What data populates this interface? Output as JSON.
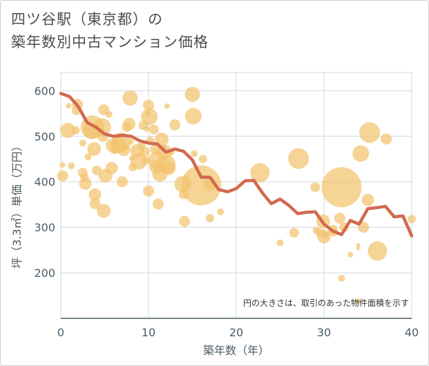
{
  "chart_data": {
    "type": "scatter",
    "title": [
      "四ツ谷駅（東京都）の",
      "築年数別中古マンション価格"
    ],
    "xlabel": "築年数（年）",
    "ylabel": "坪（3.3㎡）単価（万円）",
    "xlim": [
      0,
      40
    ],
    "ylim": [
      100,
      640
    ],
    "xticks": [
      0,
      10,
      20,
      30,
      40
    ],
    "yticks": [
      200,
      300,
      400,
      500,
      600
    ],
    "grid": true,
    "note": "円の大きさは、取引のあった物件面積を示す",
    "colors": {
      "bubble": "#f2c46e",
      "line": "#d2694f",
      "grid": "#cfd8df",
      "axis": "#4a5b66"
    },
    "trend_line": {
      "x": [
        0,
        1,
        2,
        3,
        4,
        5,
        6,
        7,
        8,
        9,
        10,
        11,
        12,
        13,
        14,
        15,
        16,
        17,
        18,
        19,
        20,
        21,
        22,
        23,
        24,
        25,
        26,
        27,
        28,
        29,
        30,
        31,
        32,
        33,
        34,
        35,
        36,
        37,
        38,
        39,
        40
      ],
      "y": [
        594,
        587,
        565,
        530,
        520,
        505,
        500,
        502,
        500,
        490,
        485,
        483,
        465,
        472,
        467,
        448,
        410,
        410,
        383,
        378,
        385,
        402,
        403,
        375,
        352,
        362,
        348,
        330,
        333,
        334,
        307,
        292,
        284,
        315,
        307,
        341,
        343,
        346,
        323,
        325,
        281
      ]
    },
    "points": [
      {
        "x": 0.2,
        "y": 437,
        "r": 4
      },
      {
        "x": 0.2,
        "y": 413,
        "r": 8
      },
      {
        "x": 0.8,
        "y": 513,
        "r": 11
      },
      {
        "x": 0.9,
        "y": 567,
        "r": 4
      },
      {
        "x": 1.2,
        "y": 435,
        "r": 5
      },
      {
        "x": 1.8,
        "y": 557,
        "r": 7
      },
      {
        "x": 1.9,
        "y": 570,
        "r": 8
      },
      {
        "x": 1.7,
        "y": 513,
        "r": 6
      },
      {
        "x": 2.5,
        "y": 485,
        "r": 5
      },
      {
        "x": 2.5,
        "y": 420,
        "r": 7
      },
      {
        "x": 2.7,
        "y": 410,
        "r": 6
      },
      {
        "x": 2.8,
        "y": 396,
        "r": 9
      },
      {
        "x": 3.1,
        "y": 455,
        "r": 5
      },
      {
        "x": 3.5,
        "y": 512,
        "r": 12
      },
      {
        "x": 3.6,
        "y": 520,
        "r": 17
      },
      {
        "x": 3.8,
        "y": 472,
        "r": 10
      },
      {
        "x": 3.9,
        "y": 372,
        "r": 9
      },
      {
        "x": 3.9,
        "y": 352,
        "r": 8
      },
      {
        "x": 4.1,
        "y": 425,
        "r": 7
      },
      {
        "x": 4.7,
        "y": 520,
        "r": 13
      },
      {
        "x": 4.8,
        "y": 500,
        "r": 8
      },
      {
        "x": 4.9,
        "y": 558,
        "r": 8
      },
      {
        "x": 4.9,
        "y": 336,
        "r": 10
      },
      {
        "x": 5.1,
        "y": 413,
        "r": 10
      },
      {
        "x": 5.5,
        "y": 548,
        "r": 5
      },
      {
        "x": 5.8,
        "y": 430,
        "r": 9
      },
      {
        "x": 5.9,
        "y": 480,
        "r": 10
      },
      {
        "x": 6.1,
        "y": 470,
        "r": 6
      },
      {
        "x": 6.6,
        "y": 480,
        "r": 12
      },
      {
        "x": 6.9,
        "y": 487,
        "r": 14
      },
      {
        "x": 7.0,
        "y": 400,
        "r": 8
      },
      {
        "x": 7.2,
        "y": 470,
        "r": 9
      },
      {
        "x": 7.5,
        "y": 520,
        "r": 7
      },
      {
        "x": 7.8,
        "y": 527,
        "r": 9
      },
      {
        "x": 7.9,
        "y": 584,
        "r": 11
      },
      {
        "x": 8.0,
        "y": 488,
        "r": 4
      },
      {
        "x": 8.1,
        "y": 452,
        "r": 4
      },
      {
        "x": 8.2,
        "y": 432,
        "r": 6
      },
      {
        "x": 8.7,
        "y": 468,
        "r": 10
      },
      {
        "x": 8.9,
        "y": 445,
        "r": 12
      },
      {
        "x": 9.2,
        "y": 480,
        "r": 6
      },
      {
        "x": 9.4,
        "y": 524,
        "r": 7
      },
      {
        "x": 9.6,
        "y": 466,
        "r": 7
      },
      {
        "x": 9.7,
        "y": 447,
        "r": 6
      },
      {
        "x": 9.8,
        "y": 516,
        "r": 4
      },
      {
        "x": 9.9,
        "y": 550,
        "r": 4
      },
      {
        "x": 10.0,
        "y": 568,
        "r": 8
      },
      {
        "x": 10.1,
        "y": 543,
        "r": 12
      },
      {
        "x": 10.0,
        "y": 380,
        "r": 8
      },
      {
        "x": 10.2,
        "y": 490,
        "r": 6
      },
      {
        "x": 10.6,
        "y": 515,
        "r": 7
      },
      {
        "x": 10.8,
        "y": 472,
        "r": 8
      },
      {
        "x": 10.9,
        "y": 432,
        "r": 10
      },
      {
        "x": 11.0,
        "y": 447,
        "r": 13
      },
      {
        "x": 11.1,
        "y": 351,
        "r": 8
      },
      {
        "x": 11.3,
        "y": 417,
        "r": 11
      },
      {
        "x": 11.5,
        "y": 493,
        "r": 10
      },
      {
        "x": 11.7,
        "y": 473,
        "r": 5
      },
      {
        "x": 11.8,
        "y": 465,
        "r": 11
      },
      {
        "x": 12.0,
        "y": 438,
        "r": 14
      },
      {
        "x": 12.1,
        "y": 566,
        "r": 4
      },
      {
        "x": 12.3,
        "y": 430,
        "r": 10
      },
      {
        "x": 12.6,
        "y": 466,
        "r": 5
      },
      {
        "x": 13.0,
        "y": 525,
        "r": 8
      },
      {
        "x": 13.9,
        "y": 395,
        "r": 12
      },
      {
        "x": 14.0,
        "y": 372,
        "r": 7
      },
      {
        "x": 14.1,
        "y": 313,
        "r": 8
      },
      {
        "x": 15.0,
        "y": 592,
        "r": 11
      },
      {
        "x": 15.1,
        "y": 544,
        "r": 12
      },
      {
        "x": 15.2,
        "y": 462,
        "r": 5
      },
      {
        "x": 16.0,
        "y": 392,
        "r": 29
      },
      {
        "x": 16.2,
        "y": 450,
        "r": 6
      },
      {
        "x": 17.0,
        "y": 395,
        "r": 9
      },
      {
        "x": 17.0,
        "y": 320,
        "r": 6
      },
      {
        "x": 18.2,
        "y": 334,
        "r": 5
      },
      {
        "x": 22.7,
        "y": 420,
        "r": 14
      },
      {
        "x": 25.0,
        "y": 266,
        "r": 5
      },
      {
        "x": 26.6,
        "y": 288,
        "r": 7
      },
      {
        "x": 27.1,
        "y": 451,
        "r": 15
      },
      {
        "x": 29.0,
        "y": 388,
        "r": 7
      },
      {
        "x": 29.1,
        "y": 293,
        "r": 5
      },
      {
        "x": 29.5,
        "y": 289,
        "r": 6
      },
      {
        "x": 29.9,
        "y": 313,
        "r": 10
      },
      {
        "x": 30.0,
        "y": 280,
        "r": 10
      },
      {
        "x": 30.2,
        "y": 283,
        "r": 5
      },
      {
        "x": 31.0,
        "y": 295,
        "r": 7
      },
      {
        "x": 31.1,
        "y": 289,
        "r": 6
      },
      {
        "x": 31.8,
        "y": 320,
        "r": 8
      },
      {
        "x": 32.0,
        "y": 388,
        "r": 29
      },
      {
        "x": 32.0,
        "y": 188,
        "r": 5
      },
      {
        "x": 32.3,
        "y": 300,
        "r": 7
      },
      {
        "x": 33.0,
        "y": 240,
        "r": 4
      },
      {
        "x": 33.9,
        "y": 261,
        "r": 3
      },
      {
        "x": 33.9,
        "y": 254,
        "r": 3
      },
      {
        "x": 33.9,
        "y": 138,
        "r": 4
      },
      {
        "x": 34.2,
        "y": 462,
        "r": 12
      },
      {
        "x": 34.5,
        "y": 300,
        "r": 8
      },
      {
        "x": 35.0,
        "y": 360,
        "r": 9
      },
      {
        "x": 35.2,
        "y": 508,
        "r": 15
      },
      {
        "x": 36.1,
        "y": 248,
        "r": 14
      },
      {
        "x": 37.1,
        "y": 494,
        "r": 8
      },
      {
        "x": 40.0,
        "y": 318,
        "r": 6
      }
    ]
  }
}
